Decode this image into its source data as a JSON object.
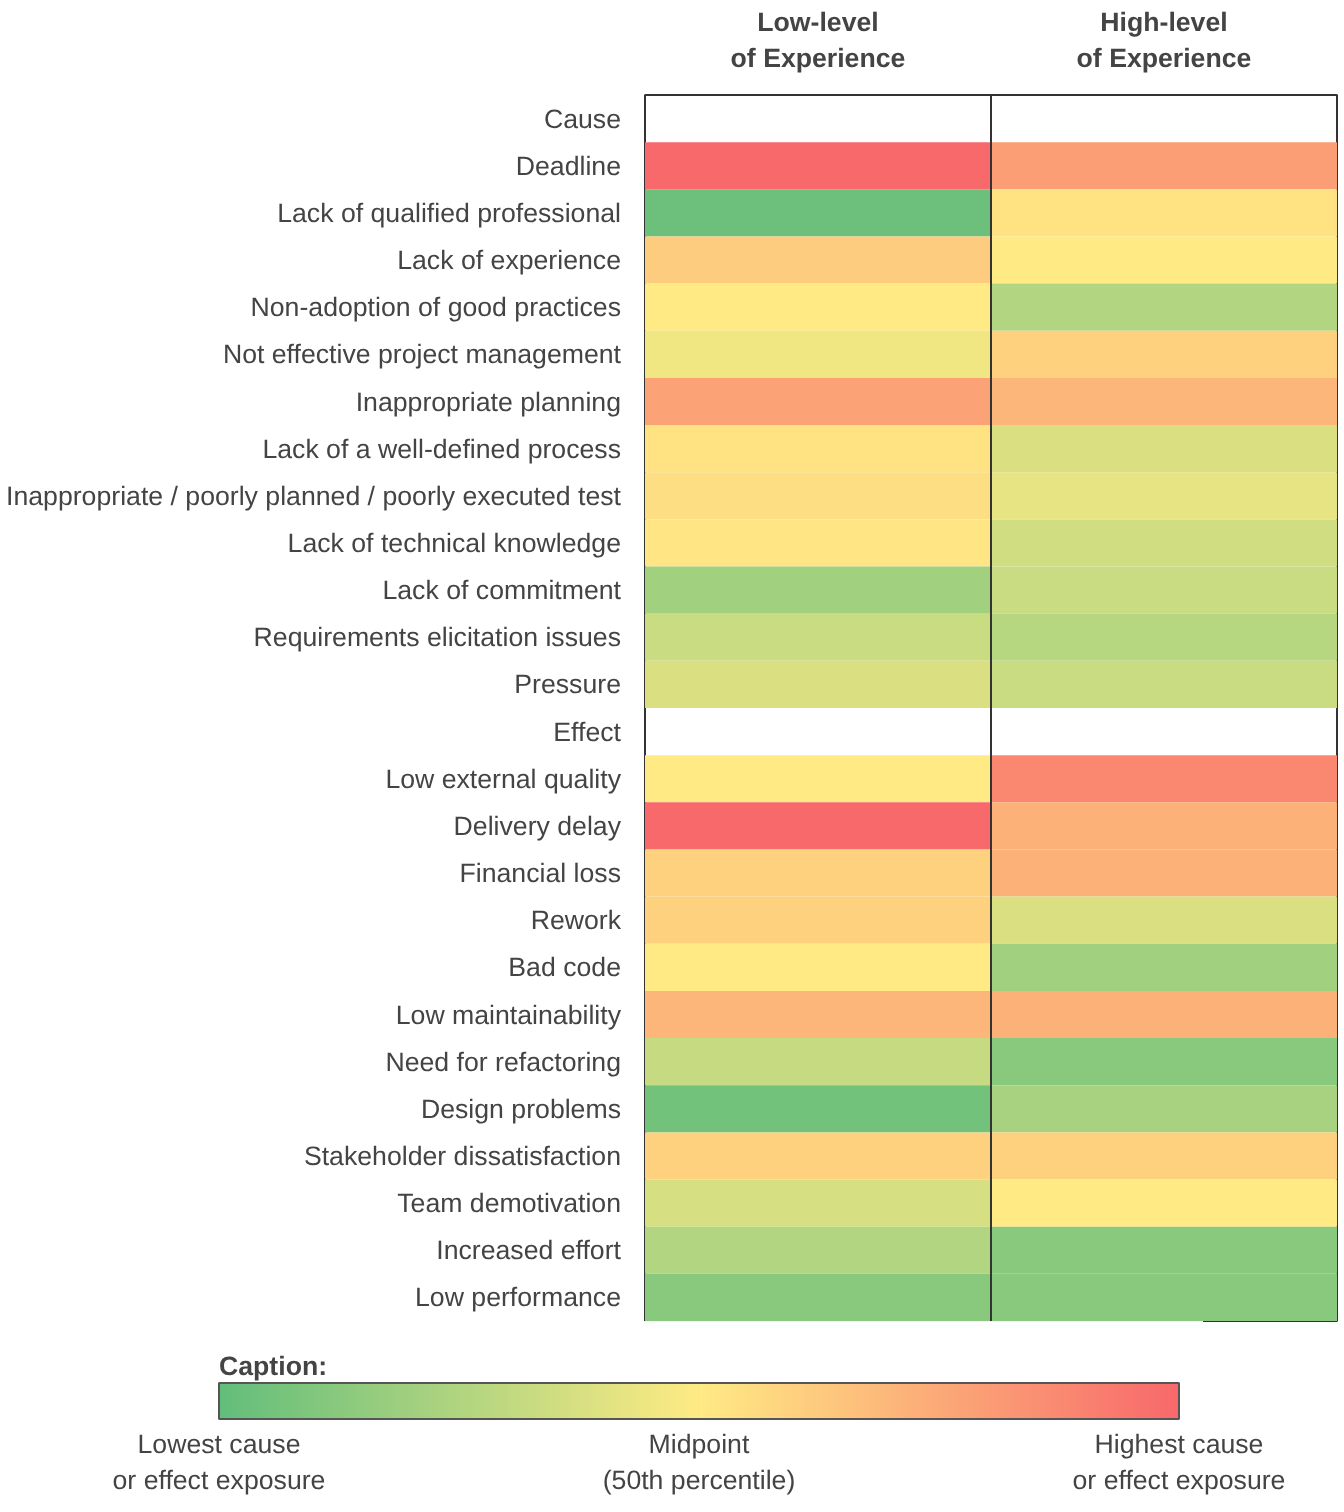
{
  "chart_data": {
    "type": "heatmap",
    "categories": [
      "Low-level of Experience",
      "High-level of Experience"
    ],
    "y_categories": [
      "Cause",
      "Deadline",
      "Lack of qualified professional",
      "Lack of experience",
      "Non-adoption of good practices",
      "Not effective project management",
      "Inappropriate planning",
      "Lack of a well-defined process",
      "Inappropriate / poorly planned / poorly executed test",
      "Lack of technical knowledge",
      "Lack of commitment",
      "Requirements elicitation issues",
      "Pressure",
      "Effect",
      "Low external quality",
      "Delivery delay",
      "Financial loss",
      "Rework",
      "Bad code",
      "Low maintainability",
      "Need for refactoring",
      "Design problems",
      "Stakeholder dissatisfaction",
      "Team demotivation",
      "Increased effort",
      "Low performance"
    ],
    "cells": [
      [
        null,
        null
      ],
      [
        100,
        80
      ],
      [
        3,
        53
      ],
      [
        62,
        50
      ],
      [
        50,
        25
      ],
      [
        45,
        60
      ],
      [
        78,
        70
      ],
      [
        53,
        38
      ],
      [
        55,
        42
      ],
      [
        52,
        35
      ],
      [
        20,
        33
      ],
      [
        33,
        27
      ],
      [
        38,
        33
      ],
      [
        null,
        null
      ],
      [
        50,
        88
      ],
      [
        100,
        72
      ],
      [
        60,
        72
      ],
      [
        60,
        38
      ],
      [
        50,
        20
      ],
      [
        70,
        72
      ],
      [
        32,
        12
      ],
      [
        5,
        22
      ],
      [
        60,
        60
      ],
      [
        37,
        50
      ],
      [
        25,
        12
      ],
      [
        12,
        12
      ]
    ],
    "clim": [
      0,
      100
    ],
    "clabel": "Caption:",
    "cticks": [
      {
        "value": 0,
        "label": "Lowest cause or effect exposure"
      },
      {
        "value": 50,
        "label": "Midpoint (50th percentile)"
      },
      {
        "value": 100,
        "label": "Highest cause or effect exposure"
      }
    ]
  }
}
